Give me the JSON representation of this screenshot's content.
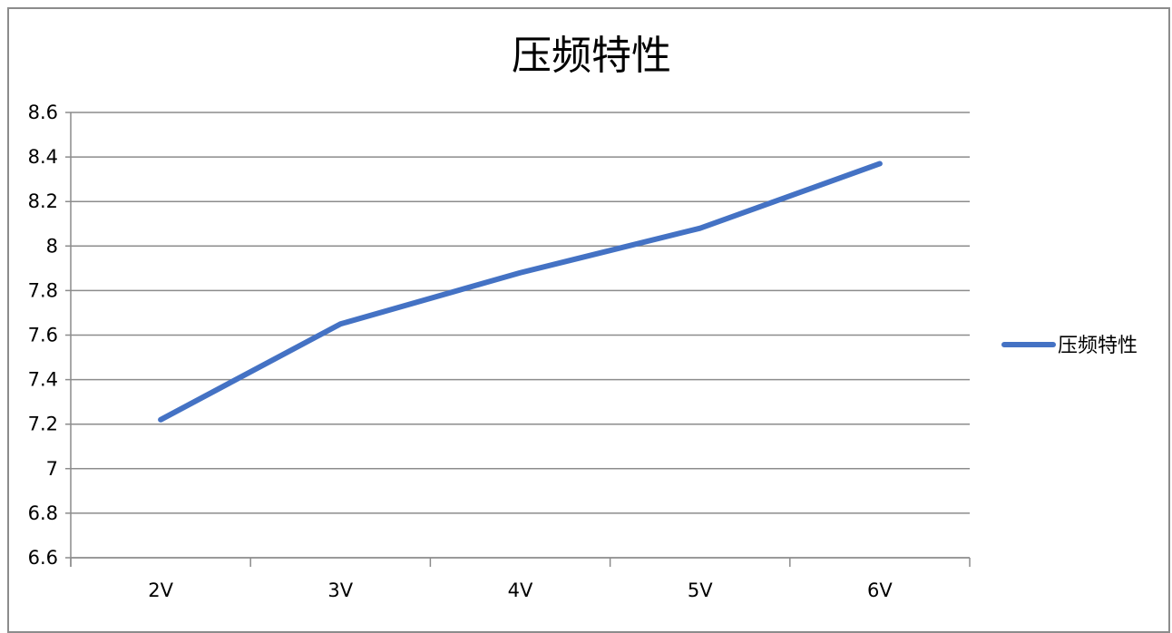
{
  "chart_data": {
    "type": "line",
    "title": "压频特性",
    "categories": [
      "2V",
      "3V",
      "4V",
      "5V",
      "6V"
    ],
    "series": [
      {
        "name": "压频特性",
        "values": [
          7.22,
          7.65,
          7.88,
          8.08,
          8.37
        ],
        "color": "#4472c4"
      }
    ],
    "ylim": [
      6.6,
      8.6
    ],
    "yticks": [
      "6.6",
      "6.8",
      "7",
      "7.2",
      "7.4",
      "7.6",
      "7.8",
      "8",
      "8.2",
      "8.4",
      "8.6"
    ],
    "grid": true,
    "legend_position": "right"
  }
}
